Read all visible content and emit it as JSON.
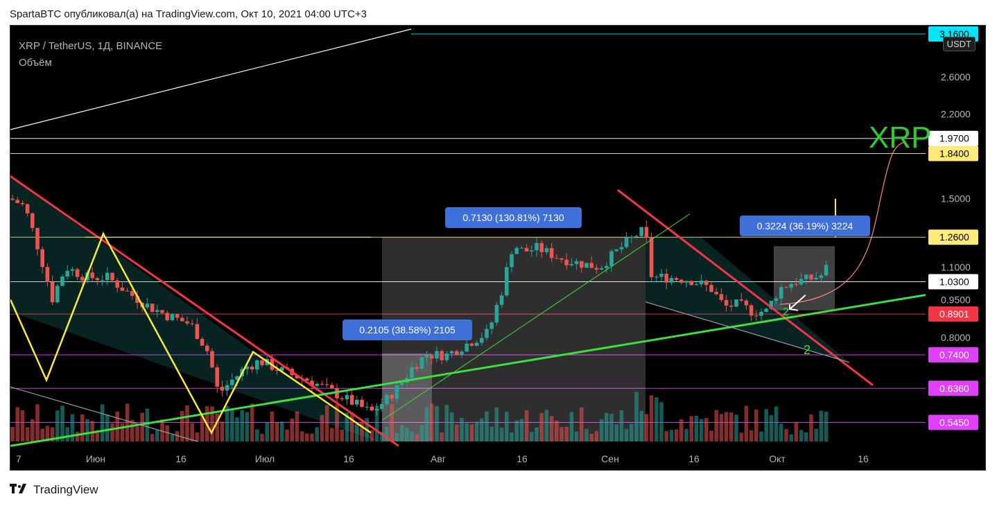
{
  "header": {
    "text": "SpartaBTC опубликовал(а) на TradingView.com, Окт 10, 2021 04:00 UTC+3"
  },
  "legend": {
    "symbol": "XRP / TetherUS, 1Д, BINANCE",
    "indicator": "Объём"
  },
  "currency_button": "USDT",
  "footer": {
    "logo_text": "TradingView"
  },
  "chart_data": {
    "type": "candlestick",
    "symbol": "XRP / TetherUS",
    "interval": "1Д",
    "exchange": "BINANCE",
    "y_scale": "log",
    "y_axis_ticks": [
      "2.6000",
      "2.2000",
      "1.5000",
      "1.1000",
      "0.9500",
      "0.8000"
    ],
    "x_axis_ticks": [
      "7",
      "Июн",
      "16",
      "Июл",
      "16",
      "Авг",
      "16",
      "Сен",
      "16",
      "Окт",
      "16"
    ],
    "price_levels": [
      {
        "label": "3.1600",
        "color": "#00e5ff",
        "text_color": "#000000"
      },
      {
        "label": "1.9700",
        "color": "#ffffff",
        "text_color": "#000000"
      },
      {
        "label": "1.8400",
        "color": "#ffeb7a",
        "text_color": "#000000"
      },
      {
        "label": "1.2600",
        "color": "#ffeb7a",
        "text_color": "#000000"
      },
      {
        "label": "1.0300",
        "color": "#ffffff",
        "text_color": "#000000"
      },
      {
        "label": "0.8901",
        "color": "#f23645",
        "text_color": "#ffffff"
      },
      {
        "label": "0.7400",
        "color": "#e040fb",
        "text_color": "#ffffff"
      },
      {
        "label": "0.6360",
        "color": "#e040fb",
        "text_color": "#ffffff"
      },
      {
        "label": "0.5450",
        "color": "#e040fb",
        "text_color": "#ffffff"
      }
    ],
    "annotations": {
      "measure_1": "0.2105 (38.58%) 2105",
      "measure_2": "0.7130 (130.81%) 7130",
      "measure_3": "0.3224 (36.19%) 3224",
      "big_label": "XRP",
      "wave_label_1": "2",
      "wave_label_2": "2"
    },
    "colors": {
      "up": "#26a69a",
      "down": "#ef5350",
      "background": "#000000"
    }
  }
}
